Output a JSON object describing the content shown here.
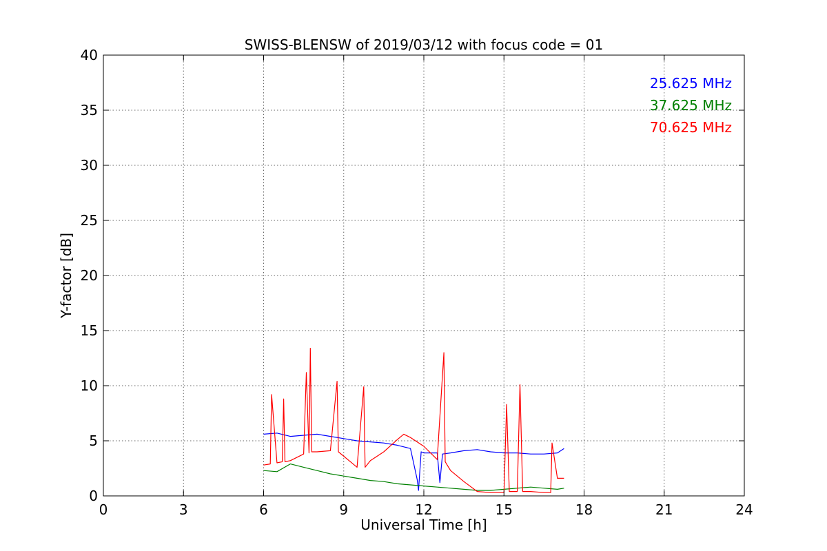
{
  "chart_data": {
    "type": "line",
    "title": "SWISS-BLENSW of 2019/03/12 with focus code = 01",
    "xlabel": "Universal Time [h]",
    "ylabel": "Y-factor [dB]",
    "xlim": [
      0,
      24
    ],
    "ylim": [
      0,
      40
    ],
    "xticks": [
      0,
      3,
      6,
      9,
      12,
      15,
      18,
      21,
      24
    ],
    "yticks": [
      0,
      5,
      10,
      15,
      20,
      25,
      30,
      35,
      40
    ],
    "grid": true,
    "legend_position": "top-right",
    "series": [
      {
        "name": "25.625 MHz",
        "color": "#0000ff",
        "x": [
          6.0,
          6.5,
          7.0,
          7.5,
          8.0,
          8.5,
          9.0,
          9.5,
          10.0,
          10.5,
          11.0,
          11.5,
          11.75,
          11.8,
          11.9,
          12.0,
          12.5,
          12.6,
          12.7,
          13.0,
          13.5,
          14.0,
          14.5,
          15.0,
          15.5,
          16.0,
          16.5,
          17.0,
          17.25
        ],
        "y": [
          5.6,
          5.7,
          5.4,
          5.5,
          5.6,
          5.4,
          5.2,
          5.0,
          4.9,
          4.8,
          4.6,
          4.3,
          1.5,
          0.5,
          4.0,
          3.9,
          3.9,
          1.2,
          3.8,
          3.9,
          4.1,
          4.2,
          4.0,
          3.9,
          3.9,
          3.8,
          3.8,
          3.9,
          4.3
        ]
      },
      {
        "name": "37.625 MHz",
        "color": "#008000",
        "x": [
          6.0,
          6.5,
          7.0,
          7.5,
          8.0,
          8.5,
          9.0,
          9.5,
          10.0,
          10.5,
          11.0,
          11.5,
          12.0,
          12.5,
          13.0,
          13.5,
          14.0,
          14.5,
          15.0,
          15.5,
          16.0,
          16.5,
          17.0,
          17.25
        ],
        "y": [
          2.3,
          2.2,
          2.9,
          2.6,
          2.3,
          2.0,
          1.8,
          1.6,
          1.4,
          1.3,
          1.1,
          1.0,
          0.9,
          0.8,
          0.7,
          0.6,
          0.5,
          0.5,
          0.6,
          0.7,
          0.8,
          0.7,
          0.6,
          0.7
        ]
      },
      {
        "name": "70.625 MHz",
        "color": "#ff0000",
        "x": [
          6.0,
          6.25,
          6.3,
          6.5,
          6.7,
          6.75,
          6.8,
          7.0,
          7.5,
          7.6,
          7.7,
          7.75,
          7.8,
          8.0,
          8.5,
          8.75,
          8.8,
          9.0,
          9.5,
          9.75,
          9.8,
          10.0,
          10.5,
          11.0,
          11.25,
          11.5,
          12.0,
          12.5,
          12.75,
          12.8,
          13.0,
          13.5,
          14.0,
          14.5,
          15.0,
          15.1,
          15.2,
          15.5,
          15.6,
          15.7,
          16.0,
          16.5,
          16.75,
          16.8,
          17.0,
          17.25
        ],
        "y": [
          2.8,
          2.9,
          9.2,
          3.0,
          3.1,
          8.8,
          3.1,
          3.2,
          3.8,
          11.2,
          3.9,
          13.4,
          4.0,
          4.0,
          4.1,
          10.4,
          4.0,
          3.6,
          2.6,
          9.9,
          2.6,
          3.2,
          4.0,
          5.1,
          5.6,
          5.3,
          4.5,
          3.3,
          13.0,
          3.1,
          2.3,
          1.3,
          0.4,
          0.3,
          0.3,
          8.3,
          0.4,
          0.4,
          10.1,
          0.4,
          0.4,
          0.3,
          0.3,
          4.8,
          1.6,
          1.6
        ]
      }
    ]
  }
}
